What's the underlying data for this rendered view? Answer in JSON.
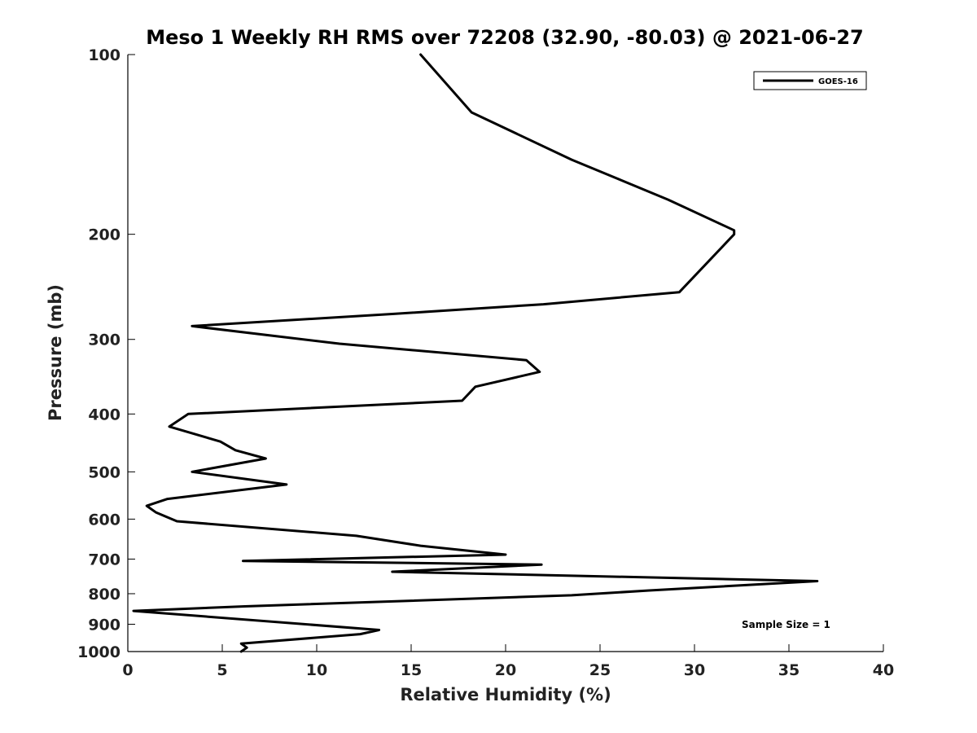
{
  "chart_data": {
    "type": "line",
    "title": "Meso 1 Weekly RH RMS over 72208 (32.90, -80.03) @ 2021-06-27",
    "xlabel": "Relative Humidity (%)",
    "ylabel": "Pressure (mb)",
    "xlim": [
      0,
      40
    ],
    "ylim": [
      1000,
      100
    ],
    "y_scale": "log",
    "y_inverted": true,
    "x_ticks": [
      "0",
      "5",
      "10",
      "15",
      "20",
      "25",
      "30",
      "35",
      "40"
    ],
    "y_ticks": [
      "100",
      "200",
      "300",
      "400",
      "500",
      "600",
      "700",
      "800",
      "900",
      "1000"
    ],
    "grid": false,
    "legend_position": "top-right",
    "series": [
      {
        "name": "GOES-16",
        "color": "#000000",
        "points": [
          [
            15.5,
            100
          ],
          [
            18.2,
            125
          ],
          [
            23.5,
            150
          ],
          [
            28.6,
            175
          ],
          [
            32.1,
            197
          ],
          [
            32.1,
            200
          ],
          [
            29.2,
            250
          ],
          [
            22.0,
            262
          ],
          [
            14.0,
            272
          ],
          [
            3.4,
            285
          ],
          [
            11.2,
            305
          ],
          [
            21.1,
            325
          ],
          [
            21.8,
            340
          ],
          [
            18.4,
            360
          ],
          [
            17.7,
            380
          ],
          [
            3.2,
            400
          ],
          [
            2.2,
            420
          ],
          [
            4.9,
            445
          ],
          [
            5.7,
            460
          ],
          [
            7.3,
            475
          ],
          [
            3.4,
            500
          ],
          [
            8.4,
            525
          ],
          [
            2.1,
            555
          ],
          [
            1.0,
            570
          ],
          [
            1.5,
            585
          ],
          [
            2.6,
            605
          ],
          [
            12.1,
            640
          ],
          [
            15.5,
            665
          ],
          [
            20.0,
            688
          ],
          [
            6.1,
            705
          ],
          [
            21.9,
            715
          ],
          [
            14.0,
            735
          ],
          [
            36.5,
            762
          ],
          [
            27.6,
            790
          ],
          [
            23.5,
            805
          ],
          [
            6.2,
            840
          ],
          [
            0.3,
            855
          ],
          [
            13.3,
            920
          ],
          [
            12.3,
            935
          ],
          [
            6.0,
            970
          ],
          [
            6.3,
            985
          ],
          [
            6.0,
            1000
          ]
        ]
      }
    ],
    "legend": [
      "GOES-16"
    ],
    "annotations": [
      "Sample Size = 1"
    ]
  }
}
